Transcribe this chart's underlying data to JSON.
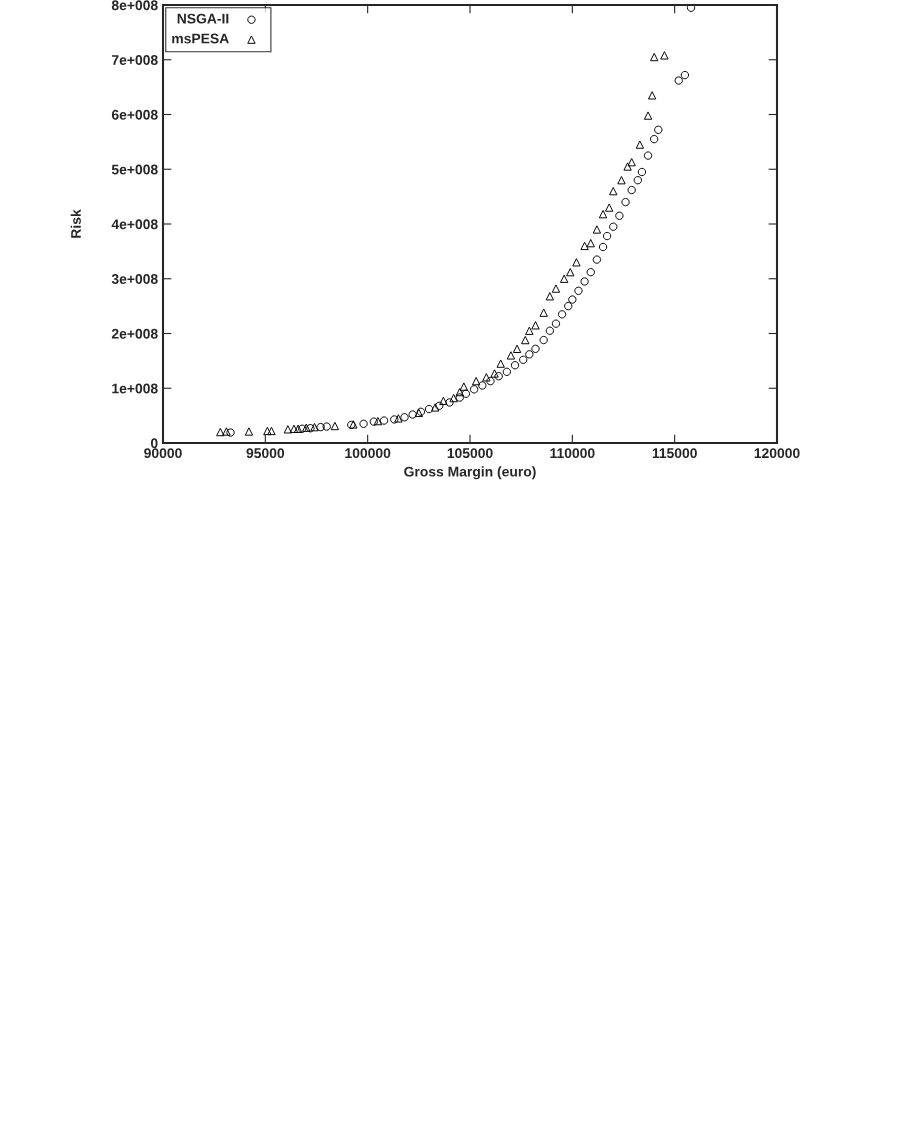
{
  "chart_data": {
    "type": "scatter",
    "xlabel": "Gross Margin (euro)",
    "ylabel": "Risk",
    "xlim": [
      90000,
      120000
    ],
    "xticks": [
      90000,
      95000,
      100000,
      105000,
      110000,
      115000,
      120000
    ],
    "ylim": [
      0,
      800000000
    ],
    "yticks": [
      0,
      {
        "value": 100000000,
        "label": "1e+008"
      },
      {
        "value": 200000000,
        "label": "2e+008"
      },
      {
        "value": 300000000,
        "label": "3e+008"
      },
      {
        "value": 400000000,
        "label": "4e+008"
      },
      {
        "value": 500000000,
        "label": "5e+008"
      },
      {
        "value": 600000000,
        "label": "6e+008"
      },
      {
        "value": 700000000,
        "label": "7e+008"
      },
      {
        "value": 800000000,
        "label": "8e+008"
      }
    ],
    "grid": false,
    "legend": "top left",
    "series": [
      {
        "name": "NSGA-II",
        "color": "#000000",
        "marker": "circle",
        "x": [
          93300,
          96800,
          97200,
          97700,
          98000,
          99200,
          99800,
          100300,
          100800,
          101300,
          101800,
          102200,
          102600,
          103000,
          103500,
          104000,
          104500,
          104800,
          105200,
          105600,
          106000,
          106400,
          106800,
          107200,
          107600,
          107900,
          108200,
          108600,
          108900,
          109200,
          109500,
          109800,
          110000,
          110300,
          110600,
          110900,
          111200,
          111500,
          111700,
          112000,
          112300,
          112600,
          112900,
          113200,
          113400,
          113700,
          114000,
          114200,
          115200,
          115500,
          115800
        ],
        "values": [
          19000000,
          26000000,
          27000000,
          29000000,
          30000000,
          33000000,
          35000000,
          39000000,
          41000000,
          43000000,
          47000000,
          52000000,
          57000000,
          62000000,
          68000000,
          74000000,
          83000000,
          90000000,
          98000000,
          105000000,
          113000000,
          122000000,
          130000000,
          142000000,
          152000000,
          162000000,
          172000000,
          188000000,
          205000000,
          218000000,
          235000000,
          250000000,
          262000000,
          278000000,
          295000000,
          312000000,
          335000000,
          358000000,
          378000000,
          395000000,
          415000000,
          440000000,
          462000000,
          480000000,
          495000000,
          525000000,
          555000000,
          572000000,
          662000000,
          672000000,
          795000000
        ]
      },
      {
        "name": "msPESA",
        "color": "#000000",
        "marker": "triangle",
        "x": [
          92800,
          93100,
          94200,
          95100,
          95300,
          96100,
          96400,
          96600,
          97000,
          97400,
          98400,
          99300,
          100500,
          101500,
          102500,
          103300,
          103700,
          104200,
          104500,
          104700,
          105300,
          105800,
          106200,
          106500,
          107000,
          107300,
          107700,
          107900,
          108200,
          108600,
          108900,
          109200,
          109600,
          109900,
          110200,
          110600,
          110900,
          111200,
          111500,
          111800,
          112000,
          112400,
          112700,
          112900,
          113300,
          113700,
          113900,
          114000,
          114500
        ],
        "values": [
          20000000,
          21000000,
          21000000,
          22000000,
          22000000,
          25000000,
          26000000,
          26000000,
          28000000,
          29000000,
          31000000,
          34000000,
          40000000,
          45000000,
          55000000,
          65000000,
          77000000,
          82000000,
          93000000,
          103000000,
          113000000,
          120000000,
          127000000,
          145000000,
          160000000,
          172000000,
          188000000,
          205000000,
          215000000,
          238000000,
          268000000,
          282000000,
          300000000,
          312000000,
          330000000,
          360000000,
          365000000,
          390000000,
          418000000,
          430000000,
          460000000,
          480000000,
          505000000,
          513000000,
          545000000,
          598000000,
          635000000,
          705000000,
          708000000
        ]
      }
    ]
  }
}
